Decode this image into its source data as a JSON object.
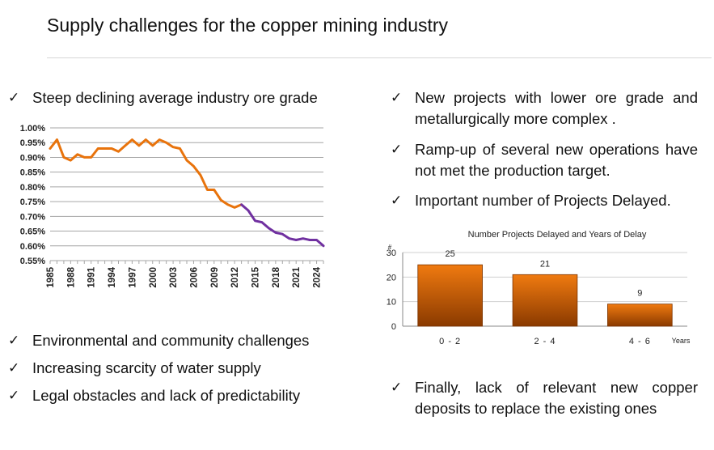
{
  "title": "Supply challenges for the copper mining industry",
  "check_glyph": "✓",
  "left_bullets": [
    "Steep declining average industry ore grade",
    "Environmental and community challenges",
    "Increasing scarcity of water supply",
    "Legal obstacles and lack of predictability"
  ],
  "right_bullets": [
    "New projects with lower ore grade and metallurgically more complex .",
    "Ramp-up of several new operations have not met the production target.",
    "Important number of Projects Delayed.",
    "Finally, lack of relevant new copper deposits to replace the existing ones"
  ],
  "chart_data": [
    {
      "type": "line",
      "title": "",
      "xlabel": "",
      "ylabel": "",
      "ylim": [
        0.55,
        1.0
      ],
      "y_ticks": [
        "1.00%",
        "0.95%",
        "0.90%",
        "0.85%",
        "0.80%",
        "0.75%",
        "0.70%",
        "0.65%",
        "0.60%",
        "0.55%"
      ],
      "x_ticks": [
        "1985",
        "1988",
        "1991",
        "1994",
        "1997",
        "2000",
        "2003",
        "2006",
        "2009",
        "2012",
        "2015",
        "2018",
        "2021",
        "2024"
      ],
      "xlim": [
        1985,
        2025
      ],
      "grid": true,
      "series": [
        {
          "color": "#e8730c",
          "x": [
            1985,
            1986,
            1987,
            1988,
            1989,
            1990,
            1991,
            1992,
            1993,
            1994,
            1995,
            1996,
            1997,
            1998,
            1999,
            2000,
            2001,
            2002,
            2003,
            2004,
            2005,
            2006,
            2007,
            2008,
            2009,
            2010,
            2011,
            2012,
            2013
          ],
          "y": [
            0.93,
            0.96,
            0.9,
            0.89,
            0.91,
            0.9,
            0.9,
            0.93,
            0.93,
            0.93,
            0.92,
            0.94,
            0.96,
            0.94,
            0.96,
            0.94,
            0.96,
            0.95,
            0.935,
            0.93,
            0.89,
            0.87,
            0.84,
            0.79,
            0.79,
            0.755,
            0.74,
            0.73,
            0.74
          ]
        },
        {
          "color": "#7030a0",
          "x": [
            2013,
            2014,
            2015,
            2016,
            2017,
            2018,
            2019,
            2020,
            2021,
            2022,
            2023,
            2024,
            2025
          ],
          "y": [
            0.74,
            0.72,
            0.685,
            0.68,
            0.66,
            0.645,
            0.64,
            0.625,
            0.62,
            0.625,
            0.62,
            0.62,
            0.6
          ]
        }
      ]
    },
    {
      "type": "bar",
      "title": "Number Projects Delayed and Years of Delay",
      "categories": [
        "0 - 2",
        "2 - 4",
        "4 - 6"
      ],
      "values": [
        25,
        21,
        9
      ],
      "xlabel": "Years",
      "ylabel": "#",
      "ylim": [
        0,
        30
      ],
      "y_ticks": [
        "0",
        "10",
        "20",
        "30"
      ],
      "grid": true,
      "bar_color_top": "#f07a10",
      "bar_color_bottom": "#8a3a00"
    }
  ]
}
